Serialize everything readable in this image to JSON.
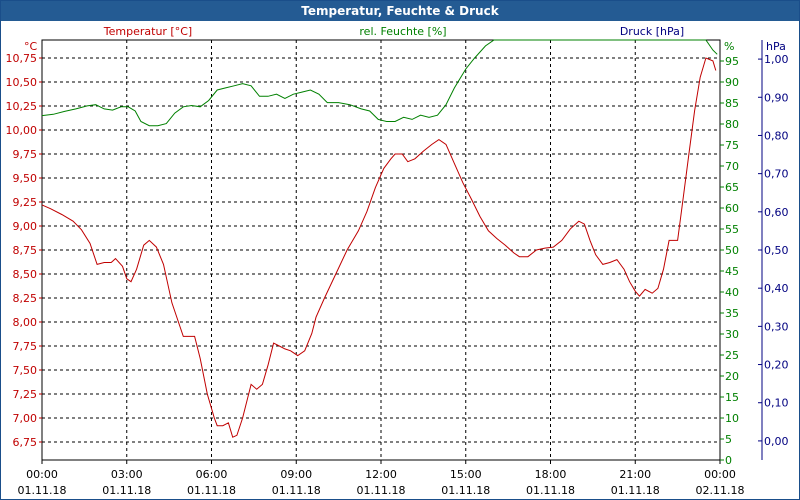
{
  "title": "Temperatur, Feuchte & Druck",
  "colors": {
    "title_bg": "#245b93",
    "temperature": "#c00000",
    "humidity": "#008000",
    "pressure": "#000080",
    "grid": "#000000"
  },
  "chart_data": {
    "type": "line",
    "title": "Temperatur, Feuchte & Druck",
    "grid": true,
    "x_ticks": [
      {
        "time": "00:00",
        "date": "01.11.18"
      },
      {
        "time": "03:00",
        "date": "01.11.18"
      },
      {
        "time": "06:00",
        "date": "01.11.18"
      },
      {
        "time": "09:00",
        "date": "01.11.18"
      },
      {
        "time": "12:00",
        "date": "01.11.18"
      },
      {
        "time": "15:00",
        "date": "01.11.18"
      },
      {
        "time": "18:00",
        "date": "01.11.18"
      },
      {
        "time": "21:00",
        "date": "01.11.18"
      },
      {
        "time": "00:00",
        "date": "02.11.18"
      }
    ],
    "x_range_hours": [
      0,
      24
    ],
    "axes": {
      "temperature": {
        "label": "Temperatur [°C]",
        "unit": "°C",
        "range": [
          6.5625,
          10.9375
        ],
        "ticks": [
          "6,75",
          "7,00",
          "7,25",
          "7,50",
          "7,75",
          "8,00",
          "8,25",
          "8,50",
          "8,75",
          "9,00",
          "9,25",
          "9,50",
          "9,75",
          "10,00",
          "10,25",
          "10,50",
          "10,75"
        ]
      },
      "humidity": {
        "label": "rel. Feuchte [%]",
        "unit": "%",
        "range": [
          0,
          100
        ],
        "ticks": [
          "0",
          "5",
          "10",
          "15",
          "20",
          "25",
          "30",
          "35",
          "40",
          "45",
          "50",
          "55",
          "60",
          "65",
          "70",
          "75",
          "80",
          "85",
          "90",
          "95"
        ]
      },
      "pressure": {
        "label": "Druck [hPa]",
        "unit": "hPa",
        "range": [
          -0.05,
          1.05
        ],
        "ticks": [
          "0,00",
          "0,10",
          "0,20",
          "0,30",
          "0,40",
          "0,50",
          "0,60",
          "0,70",
          "0,80",
          "0,90",
          "1,00"
        ]
      }
    },
    "series": [
      {
        "name": "Temperatur [°C]",
        "axis": "temperature",
        "points": [
          [
            0.0,
            9.22
          ],
          [
            0.3,
            9.18
          ],
          [
            0.7,
            9.12
          ],
          [
            1.1,
            9.05
          ],
          [
            1.4,
            8.96
          ],
          [
            1.7,
            8.82
          ],
          [
            1.95,
            8.6
          ],
          [
            2.2,
            8.62
          ],
          [
            2.45,
            8.62
          ],
          [
            2.6,
            8.66
          ],
          [
            2.85,
            8.58
          ],
          [
            3.0,
            8.45
          ],
          [
            3.15,
            8.42
          ],
          [
            3.35,
            8.55
          ],
          [
            3.6,
            8.8
          ],
          [
            3.8,
            8.85
          ],
          [
            4.05,
            8.78
          ],
          [
            4.3,
            8.6
          ],
          [
            4.6,
            8.2
          ],
          [
            5.0,
            7.85
          ],
          [
            5.4,
            7.85
          ],
          [
            5.6,
            7.62
          ],
          [
            5.85,
            7.25
          ],
          [
            6.1,
            7.0
          ],
          [
            6.2,
            6.92
          ],
          [
            6.4,
            6.92
          ],
          [
            6.6,
            6.95
          ],
          [
            6.75,
            6.8
          ],
          [
            6.9,
            6.82
          ],
          [
            7.1,
            7.0
          ],
          [
            7.4,
            7.35
          ],
          [
            7.6,
            7.3
          ],
          [
            7.8,
            7.35
          ],
          [
            8.0,
            7.55
          ],
          [
            8.2,
            7.78
          ],
          [
            8.4,
            7.75
          ],
          [
            8.6,
            7.72
          ],
          [
            8.8,
            7.7
          ],
          [
            9.05,
            7.65
          ],
          [
            9.3,
            7.7
          ],
          [
            9.55,
            7.88
          ],
          [
            9.7,
            8.05
          ],
          [
            10.0,
            8.25
          ],
          [
            10.4,
            8.5
          ],
          [
            10.8,
            8.75
          ],
          [
            11.2,
            8.95
          ],
          [
            11.5,
            9.15
          ],
          [
            11.8,
            9.4
          ],
          [
            12.1,
            9.6
          ],
          [
            12.35,
            9.7
          ],
          [
            12.5,
            9.75
          ],
          [
            12.75,
            9.75
          ],
          [
            12.95,
            9.67
          ],
          [
            13.2,
            9.7
          ],
          [
            13.5,
            9.78
          ],
          [
            13.8,
            9.85
          ],
          [
            14.05,
            9.9
          ],
          [
            14.3,
            9.85
          ],
          [
            14.6,
            9.65
          ],
          [
            14.9,
            9.45
          ],
          [
            15.2,
            9.28
          ],
          [
            15.5,
            9.1
          ],
          [
            15.8,
            8.95
          ],
          [
            16.1,
            8.87
          ],
          [
            16.4,
            8.8
          ],
          [
            16.7,
            8.72
          ],
          [
            16.9,
            8.68
          ],
          [
            17.2,
            8.68
          ],
          [
            17.5,
            8.75
          ],
          [
            17.8,
            8.77
          ],
          [
            18.1,
            8.78
          ],
          [
            18.4,
            8.85
          ],
          [
            18.7,
            8.97
          ],
          [
            19.0,
            9.05
          ],
          [
            19.2,
            9.02
          ],
          [
            19.4,
            8.85
          ],
          [
            19.6,
            8.7
          ],
          [
            19.85,
            8.6
          ],
          [
            20.1,
            8.62
          ],
          [
            20.35,
            8.65
          ],
          [
            20.6,
            8.55
          ],
          [
            20.8,
            8.42
          ],
          [
            21.0,
            8.32
          ],
          [
            21.15,
            8.27
          ],
          [
            21.35,
            8.34
          ],
          [
            21.6,
            8.3
          ],
          [
            21.8,
            8.35
          ],
          [
            22.0,
            8.55
          ],
          [
            22.2,
            8.85
          ],
          [
            22.5,
            8.85
          ],
          [
            22.7,
            9.3
          ],
          [
            22.9,
            9.75
          ],
          [
            23.1,
            10.2
          ],
          [
            23.3,
            10.55
          ],
          [
            23.5,
            10.75
          ],
          [
            23.75,
            10.72
          ],
          [
            23.85,
            10.62
          ]
        ]
      },
      {
        "name": "rel. Feuchte [%]",
        "axis": "humidity",
        "points": [
          [
            0.0,
            82
          ],
          [
            0.4,
            82.3
          ],
          [
            0.8,
            83
          ],
          [
            1.2,
            83.6
          ],
          [
            1.6,
            84.3
          ],
          [
            1.9,
            84.6
          ],
          [
            2.2,
            83.6
          ],
          [
            2.5,
            83.3
          ],
          [
            2.8,
            84.1
          ],
          [
            3.05,
            84.1
          ],
          [
            3.3,
            83.1
          ],
          [
            3.5,
            80.6
          ],
          [
            3.8,
            79.6
          ],
          [
            4.1,
            79.6
          ],
          [
            4.4,
            80.1
          ],
          [
            4.7,
            82.6
          ],
          [
            5.0,
            84.1
          ],
          [
            5.3,
            84.4
          ],
          [
            5.6,
            84.1
          ],
          [
            5.9,
            85.6
          ],
          [
            6.2,
            88.1
          ],
          [
            6.5,
            88.6
          ],
          [
            6.8,
            89.1
          ],
          [
            7.1,
            89.6
          ],
          [
            7.4,
            89.1
          ],
          [
            7.7,
            86.6
          ],
          [
            8.0,
            86.6
          ],
          [
            8.3,
            87.1
          ],
          [
            8.6,
            86.1
          ],
          [
            8.9,
            87.1
          ],
          [
            9.2,
            87.6
          ],
          [
            9.5,
            88.1
          ],
          [
            9.8,
            87.1
          ],
          [
            10.1,
            85.1
          ],
          [
            10.5,
            85.1
          ],
          [
            10.9,
            84.6
          ],
          [
            11.3,
            83.6
          ],
          [
            11.6,
            83.1
          ],
          [
            11.9,
            81.1
          ],
          [
            12.2,
            80.6
          ],
          [
            12.5,
            80.6
          ],
          [
            12.8,
            81.6
          ],
          [
            13.1,
            81.1
          ],
          [
            13.4,
            82.1
          ],
          [
            13.7,
            81.6
          ],
          [
            14.0,
            82.1
          ],
          [
            14.3,
            84.6
          ],
          [
            14.6,
            88.6
          ],
          [
            15.0,
            93.1
          ],
          [
            15.3,
            95.6
          ],
          [
            15.7,
            98.6
          ],
          [
            16.0,
            100
          ],
          [
            16.6,
            100
          ],
          [
            17.0,
            100
          ],
          [
            20.0,
            100
          ],
          [
            22.5,
            100
          ],
          [
            23.5,
            100
          ],
          [
            23.75,
            97.6
          ],
          [
            23.9,
            96.6
          ]
        ]
      }
    ]
  }
}
